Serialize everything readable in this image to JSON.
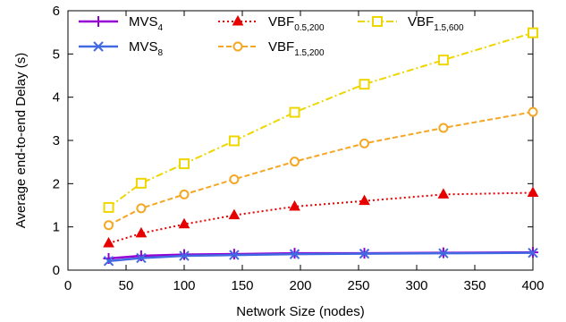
{
  "chart_data": {
    "type": "line",
    "xlabel": "Network Size (nodes)",
    "ylabel": "Average end-to-end Delay (s)",
    "xlim": [
      0,
      400
    ],
    "ylim": [
      0,
      6
    ],
    "xticks": [
      0,
      50,
      100,
      150,
      200,
      250,
      300,
      350,
      400
    ],
    "yticks": [
      0,
      1,
      2,
      3,
      4,
      5,
      6
    ],
    "grid": false,
    "legend_placement": "top",
    "x": [
      35,
      63,
      100,
      143,
      195,
      255,
      323,
      400
    ],
    "series": [
      {
        "name": "MVS4",
        "label_main": "MVS",
        "label_sub": "4",
        "color": "#9400d3",
        "marker": "plus",
        "dash": "solid",
        "stroke_width": 2.5,
        "values": [
          0.27,
          0.33,
          0.36,
          0.37,
          0.39,
          0.39,
          0.4,
          0.41
        ]
      },
      {
        "name": "MVS8",
        "label_main": "MVS",
        "label_sub": "8",
        "color": "#4169e1",
        "marker": "x",
        "dash": "solid",
        "stroke_width": 2.5,
        "values": [
          0.21,
          0.28,
          0.33,
          0.35,
          0.37,
          0.38,
          0.39,
          0.4
        ]
      },
      {
        "name": "VBF0.5,200",
        "label_main": "VBF",
        "label_sub": "0.5,200",
        "color": "#e60000",
        "marker": "triangle",
        "dash": "dot",
        "stroke_width": 2,
        "values": [
          0.62,
          0.85,
          1.06,
          1.27,
          1.47,
          1.6,
          1.75,
          1.79
        ]
      },
      {
        "name": "VBF1.5,200",
        "label_main": "VBF",
        "label_sub": "1.5,200",
        "color": "#f5a623",
        "marker": "circle",
        "dash": "dash",
        "stroke_width": 2,
        "values": [
          1.04,
          1.43,
          1.75,
          2.1,
          2.51,
          2.93,
          3.29,
          3.66
        ]
      },
      {
        "name": "VBF1.5,600",
        "label_main": "VBF",
        "label_sub": "1.5,600",
        "color": "#eed600",
        "marker": "square",
        "dash": "dashdot",
        "stroke_width": 2,
        "values": [
          1.45,
          2.01,
          2.46,
          2.99,
          3.65,
          4.3,
          4.86,
          5.49
        ]
      }
    ]
  }
}
